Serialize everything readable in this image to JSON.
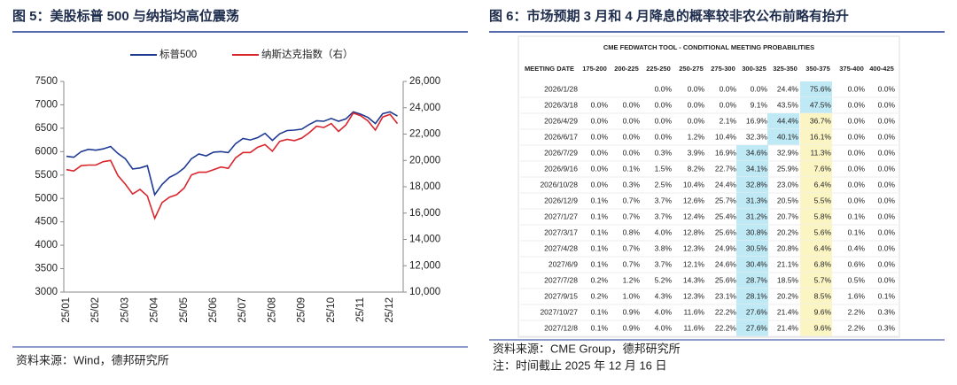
{
  "chart_data": {
    "type": "line",
    "title": "图 5：美股标普 500 与纳指均高位震荡",
    "source": "资料来源：Wind，德邦研究所",
    "legend": "top",
    "categories": [
      "25/01",
      null,
      null,
      null,
      "25/02",
      null,
      null,
      null,
      "25/03",
      null,
      null,
      null,
      "25/04",
      null,
      null,
      null,
      "25/05",
      null,
      null,
      null,
      "25/06",
      null,
      null,
      null,
      "25/07",
      null,
      null,
      null,
      "25/08",
      null,
      null,
      null,
      "25/09",
      null,
      null,
      null,
      "25/10",
      null,
      null,
      null,
      "25/11",
      null,
      null,
      null,
      "25/12",
      null
    ],
    "series": [
      {
        "name": "标普500",
        "color": "#1f3a93",
        "values": [
          5900,
          5880,
          6000,
          6050,
          6030,
          6060,
          6110,
          5960,
          5850,
          5630,
          5650,
          5700,
          5080,
          5300,
          5450,
          5530,
          5650,
          5850,
          5950,
          5910,
          5990,
          6000,
          5980,
          6170,
          6280,
          6250,
          6300,
          6390,
          6240,
          6380,
          6450,
          6460,
          6480,
          6580,
          6660,
          6650,
          6710,
          6650,
          6700,
          6850,
          6800,
          6730,
          6600,
          6810,
          6850,
          6760
        ]
      },
      {
        "name": "纳斯达克指数（右）",
        "color": "#d9262e",
        "axis": "y2",
        "values": [
          19300,
          19200,
          19600,
          19650,
          19650,
          19900,
          20000,
          18850,
          18200,
          17450,
          17800,
          17300,
          15600,
          16800,
          17200,
          17400,
          17900,
          18900,
          19100,
          19100,
          19300,
          19500,
          19400,
          20200,
          20600,
          20600,
          21000,
          21200,
          20700,
          21450,
          21600,
          21500,
          21700,
          22100,
          22600,
          22500,
          22800,
          22200,
          22700,
          23600,
          23400,
          23000,
          22300,
          23300,
          23500,
          22800
        ]
      }
    ],
    "ylim": [
      3000,
      7500
    ],
    "yticks": [
      3000,
      3500,
      4000,
      4500,
      5000,
      5500,
      6000,
      6500,
      7000,
      7500
    ],
    "y2lim": [
      10000,
      26000
    ],
    "y2ticks": [
      {
        "value": 10000,
        "label": "10,000"
      },
      {
        "value": 12000,
        "label": "12,000"
      },
      {
        "value": 14000,
        "label": "14,000"
      },
      {
        "value": 16000,
        "label": "16,000"
      },
      {
        "value": 18000,
        "label": "18,000"
      },
      {
        "value": 20000,
        "label": "20,000"
      },
      {
        "value": 22000,
        "label": "22,000"
      },
      {
        "value": 24000,
        "label": "24,000"
      },
      {
        "value": 26000,
        "label": "26,000"
      }
    ],
    "grid": false
  },
  "figure6": {
    "title": "图 6：市场预期 3 月和 4 月降息的概率较非农公布前略有抬升",
    "table": {
      "caption": "CME FEDWATCH TOOL - CONDITIONAL MEETING PROBABILITIES",
      "header": [
        "MEETING DATE",
        "175-200",
        "200-225",
        "225-250",
        "250-275",
        "275-300",
        "300-325",
        "325-350",
        "350-375",
        "375-400",
        "400-425"
      ],
      "rows": [
        [
          "2026/1/28",
          null,
          null,
          "0.0%",
          "0.0%",
          "0.0%",
          "0.0%",
          "24.4%",
          "75.6%",
          "0.0%",
          "0.0%"
        ],
        [
          "2026/3/18",
          "0.0%",
          "0.0%",
          "0.0%",
          "0.0%",
          "0.0%",
          "9.1%",
          "43.5%",
          "47.5%",
          "0.0%",
          "0.0%"
        ],
        [
          "2026/4/29",
          "0.0%",
          "0.0%",
          "0.0%",
          "0.0%",
          "2.1%",
          "16.9%",
          "44.4%",
          "36.7%",
          "0.0%",
          "0.0%"
        ],
        [
          "2026/6/17",
          "0.0%",
          "0.0%",
          "0.0%",
          "1.2%",
          "10.4%",
          "32.3%",
          "40.1%",
          "16.1%",
          "0.0%",
          "0.0%"
        ],
        [
          "2026/7/29",
          "0.0%",
          "0.0%",
          "0.3%",
          "3.9%",
          "16.9%",
          "34.6%",
          "32.9%",
          "11.3%",
          "0.0%",
          "0.0%"
        ],
        [
          "2026/9/16",
          "0.0%",
          "0.1%",
          "1.5%",
          "8.2%",
          "22.7%",
          "34.1%",
          "25.9%",
          "7.6%",
          "0.0%",
          "0.0%"
        ],
        [
          "2026/10/28",
          "0.0%",
          "0.3%",
          "2.5%",
          "10.4%",
          "24.4%",
          "32.8%",
          "23.0%",
          "6.4%",
          "0.0%",
          "0.0%"
        ],
        [
          "2026/12/9",
          "0.1%",
          "0.7%",
          "3.7%",
          "12.6%",
          "25.7%",
          "31.3%",
          "20.5%",
          "5.5%",
          "0.0%",
          "0.0%"
        ],
        [
          "2027/1/27",
          "0.1%",
          "0.7%",
          "3.7%",
          "12.4%",
          "25.4%",
          "31.2%",
          "20.7%",
          "5.8%",
          "0.1%",
          "0.0%"
        ],
        [
          "2027/3/17",
          "0.1%",
          "0.8%",
          "4.0%",
          "12.8%",
          "25.6%",
          "30.8%",
          "20.2%",
          "5.6%",
          "0.1%",
          "0.0%"
        ],
        [
          "2027/4/28",
          "0.1%",
          "0.7%",
          "3.8%",
          "12.3%",
          "24.9%",
          "30.5%",
          "20.8%",
          "6.4%",
          "0.4%",
          "0.0%"
        ],
        [
          "2027/6/9",
          "0.1%",
          "0.7%",
          "3.7%",
          "12.1%",
          "24.6%",
          "30.4%",
          "21.1%",
          "6.8%",
          "0.6%",
          "0.0%"
        ],
        [
          "2027/7/28",
          "0.2%",
          "1.2%",
          "5.2%",
          "14.3%",
          "25.6%",
          "28.7%",
          "18.5%",
          "5.7%",
          "0.5%",
          "0.0%"
        ],
        [
          "2027/9/15",
          "0.2%",
          "1.0%",
          "4.3%",
          "12.3%",
          "23.1%",
          "28.1%",
          "20.2%",
          "8.5%",
          "1.6%",
          "0.1%"
        ],
        [
          "2027/10/27",
          "0.1%",
          "0.9%",
          "4.0%",
          "11.6%",
          "22.2%",
          "27.6%",
          "21.4%",
          "9.6%",
          "2.2%",
          "0.3%"
        ],
        [
          "2027/12/8",
          "0.1%",
          "0.9%",
          "4.0%",
          "11.6%",
          "22.2%",
          "27.6%",
          "21.4%",
          "9.6%",
          "2.2%",
          "0.3%"
        ]
      ]
    },
    "source": "资料来源：CME Group，德邦研究所",
    "note": "注：时间截止 2025 年 12 月 16 日"
  }
}
